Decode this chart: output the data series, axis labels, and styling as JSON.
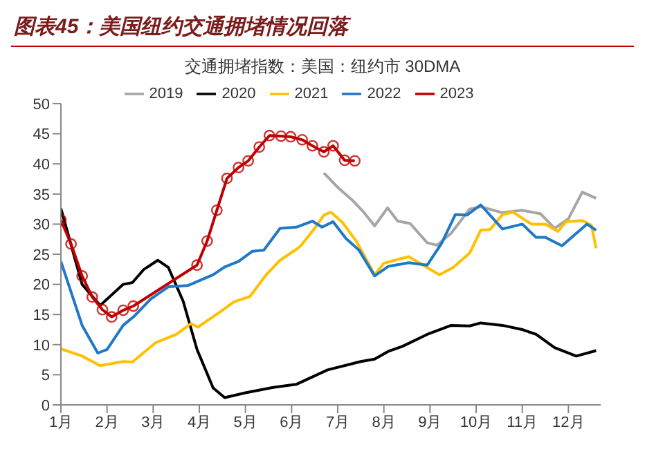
{
  "chart_data": {
    "type": "line",
    "title": "图表45：美国纽约交通拥堵情况回落",
    "subtitle": "交通拥堵指数：美国：纽约市 30DMA",
    "legend": "top",
    "grid": false,
    "line_style": "solid",
    "xlim": [
      1,
      12.7
    ],
    "xticks": [
      {
        "value": 1,
        "label": "1月"
      },
      {
        "value": 2,
        "label": "2月"
      },
      {
        "value": 3,
        "label": "3月"
      },
      {
        "value": 4,
        "label": "4月"
      },
      {
        "value": 5,
        "label": "5月"
      },
      {
        "value": 6,
        "label": "6月"
      },
      {
        "value": 7,
        "label": "7月"
      },
      {
        "value": 8,
        "label": "8月"
      },
      {
        "value": 9,
        "label": "9月"
      },
      {
        "value": 10,
        "label": "10月"
      },
      {
        "value": 11,
        "label": "11月"
      },
      {
        "value": 12,
        "label": "12月"
      }
    ],
    "ylim": [
      0,
      50
    ],
    "yticks": [
      0,
      5,
      10,
      15,
      20,
      25,
      30,
      35,
      40,
      45,
      50
    ],
    "series": [
      {
        "name": "2019",
        "color": "#a6a6a6",
        "marker": "none",
        "x": [
          6.7,
          7.0,
          7.3,
          7.55,
          7.8,
          8.08,
          8.3,
          8.57,
          8.94,
          9.15,
          9.46,
          9.86,
          10.1,
          10.57,
          11,
          11.4,
          11.7,
          12.0,
          12.3,
          12.6
        ],
        "values": [
          38.5,
          36.1,
          34.1,
          32.1,
          29.7,
          32.7,
          30.5,
          30.1,
          26.9,
          26.5,
          28.5,
          32.5,
          32.9,
          31.9,
          32.3,
          31.7,
          29.3,
          30.9,
          35.3,
          34.3
        ]
      },
      {
        "name": "2020",
        "color": "#000000",
        "marker": "none",
        "x": [
          1.0,
          1.46,
          1.85,
          2.35,
          2.55,
          2.8,
          3.1,
          3.33,
          3.65,
          3.95,
          4.3,
          4.55,
          5.0,
          5.6,
          6.1,
          6.78,
          7.5,
          7.8,
          8.1,
          8.4,
          8.94,
          9.46,
          9.86,
          10.1,
          10.57,
          11,
          11.3,
          11.7,
          12.17,
          12.6
        ],
        "values": [
          32.6,
          20,
          16.5,
          20,
          20.3,
          22.5,
          24,
          22.8,
          17.2,
          9.2,
          2.8,
          1.2,
          2,
          2.9,
          3.4,
          5.8,
          7.2,
          7.6,
          8.9,
          9.7,
          11.7,
          13.2,
          13.1,
          13.6,
          13.2,
          12.5,
          11.7,
          9.5,
          8.1,
          9.0
        ]
      },
      {
        "name": "2021",
        "color": "#ffc000",
        "marker": "none",
        "x": [
          1.0,
          1.46,
          1.85,
          2.35,
          2.55,
          3.05,
          3.5,
          3.82,
          3.97,
          4.5,
          4.75,
          5.1,
          5.45,
          5.75,
          6.1,
          6.2,
          6.5,
          6.7,
          6.85,
          7.1,
          7.4,
          7.8,
          8.0,
          8.23,
          8.54,
          8.85,
          9.2,
          9.5,
          9.86,
          10.1,
          10.3,
          10.57,
          10.8,
          11.2,
          11.5,
          11.77,
          11.95,
          12.3,
          12.5,
          12.6
        ],
        "values": [
          9.3,
          8.1,
          6.5,
          7.2,
          7.1,
          10.3,
          11.7,
          13.5,
          12.9,
          15.7,
          17.1,
          18,
          21.6,
          24,
          25.8,
          26.4,
          29.3,
          31.5,
          32,
          30.3,
          27.2,
          21.6,
          23.5,
          24,
          24.6,
          23.2,
          21.6,
          22.8,
          25.2,
          29,
          29.1,
          31.6,
          32,
          30,
          30,
          28.8,
          30.4,
          30.6,
          29.8,
          26
        ]
      },
      {
        "name": "2022",
        "color": "#1f78c8",
        "marker": "none",
        "x": [
          1.0,
          1.46,
          1.8,
          2.0,
          2.35,
          2.6,
          2.95,
          3.33,
          3.75,
          4.3,
          4.55,
          4.85,
          5.15,
          5.4,
          5.75,
          6.1,
          6.45,
          6.66,
          6.9,
          7.18,
          7.46,
          7.8,
          8.1,
          8.54,
          8.94,
          9.25,
          9.55,
          9.8,
          10.1,
          10.57,
          11,
          11.3,
          11.5,
          11.86,
          12.4,
          12.6
        ],
        "values": [
          23.8,
          13.2,
          8.6,
          9.2,
          13.2,
          14.8,
          17.6,
          19.6,
          19.8,
          21.6,
          22.9,
          23.8,
          25.5,
          25.7,
          29.3,
          29.5,
          30.5,
          29.5,
          30.4,
          27.6,
          25.7,
          21.4,
          23,
          23.6,
          23.2,
          26.8,
          31.6,
          31.5,
          33.2,
          29.2,
          30,
          27.8,
          27.8,
          26.4,
          30,
          29
        ]
      },
      {
        "name": "2023",
        "color": "#c00000",
        "marker": "circle",
        "x": [
          1.0,
          1.22,
          1.46,
          1.68,
          1.9,
          2.1,
          2.35,
          2.57,
          3.95,
          4.17,
          4.38,
          4.6,
          4.85,
          5.06,
          5.3,
          5.52,
          5.77,
          5.98,
          6.23,
          6.45,
          6.7,
          6.9,
          7.15,
          7.37
        ],
        "values": [
          30.7,
          26.7,
          21.4,
          17.9,
          15.8,
          14.6,
          15.7,
          16.4,
          23.2,
          27.2,
          32.3,
          37.6,
          39.4,
          40.5,
          42.8,
          44.7,
          44.6,
          44.5,
          44,
          43,
          42,
          43,
          40.6,
          40.5
        ]
      }
    ]
  }
}
